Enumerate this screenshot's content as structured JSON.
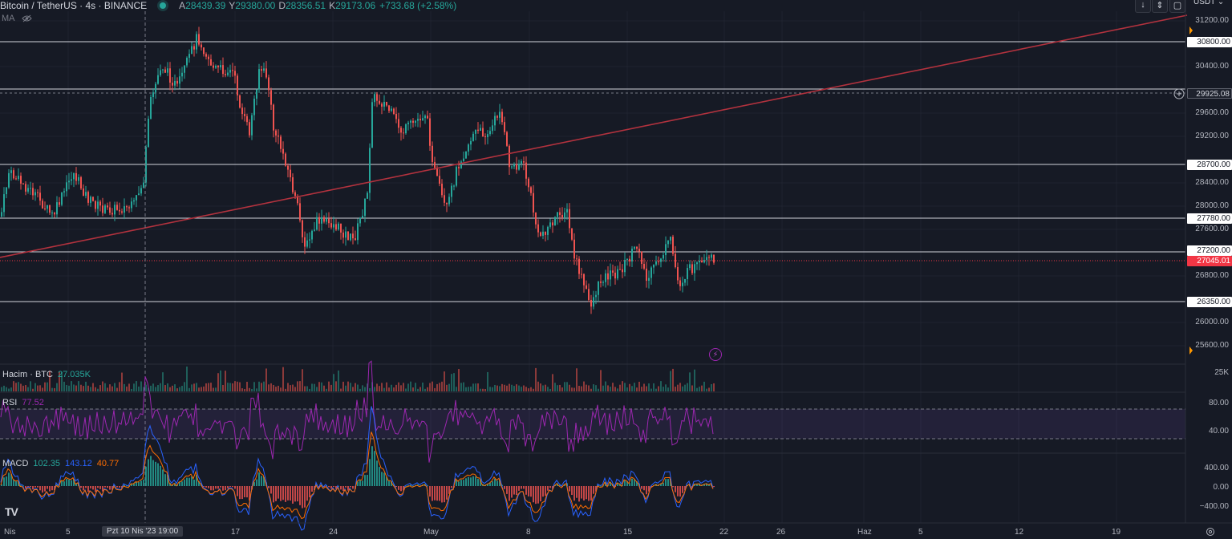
{
  "header": {
    "title": "Bitcoin / TetherUS · 4s · BINANCE",
    "open_key": "A",
    "open_val": "28439.39",
    "high_key": "Y",
    "high_val": "29380.00",
    "low_key": "D",
    "low_val": "28356.51",
    "close_key": "K",
    "close_val": "29173.06",
    "change": "+733.68 (+2.58%)",
    "ma_label": "MA",
    "currency": "USDT",
    "icons": [
      "arrow-down-icon",
      "collapse-icon",
      "maximize-icon"
    ]
  },
  "price_axis": {
    "ticks": [
      "31200.00",
      "30400.00",
      "29600.00",
      "29200.00",
      "28400.00",
      "28000.00",
      "27600.00",
      "26800.00",
      "26000.00",
      "25600.00"
    ],
    "levels": [
      "30800.00",
      "29925.08",
      "28700.00",
      "27780.00",
      "27200.00",
      "26350.00"
    ],
    "current": "27045.01"
  },
  "volume": {
    "label": "Hacim · BTC",
    "value": "27.035K",
    "tick": "25K"
  },
  "rsi": {
    "label": "RSI",
    "value": "77.52",
    "ticks": [
      "80.00",
      "40.00"
    ]
  },
  "macd": {
    "label": "MACD",
    "v1": "102.35",
    "v2": "143.12",
    "v3": "40.77",
    "ticks": [
      "400.00",
      "0.00",
      "−400.00"
    ]
  },
  "time_axis": {
    "labels": [
      "Nis",
      "5",
      "17",
      "24",
      "May",
      "8",
      "15",
      "22",
      "26",
      "Haz",
      "5",
      "12",
      "19"
    ],
    "crosshair": "Pzt 10 Nis '23   19:00"
  },
  "colors": {
    "up": "#26a69a",
    "down": "#ef5350",
    "trend": "#b2323e",
    "rsi": "#9c27b0",
    "macd": "#2962ff",
    "signal": "#ff6d00"
  }
}
